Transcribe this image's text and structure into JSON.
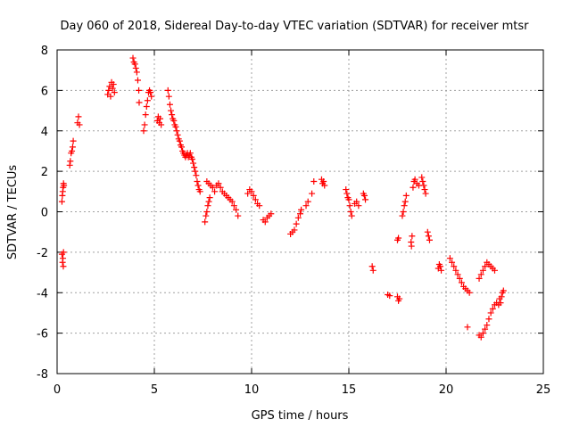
{
  "colors": {
    "marker": "#ff0000",
    "axis": "#000000",
    "grid": "#a0a0a0",
    "background": "#ffffff"
  },
  "chart_data": {
    "type": "scatter",
    "title": "Day 060 of 2018, Sidereal Day-to-day VTEC variation (SDTVAR) for receiver mtsr",
    "xlabel": "GPS time / hours",
    "ylabel": "SDTVAR / TECUs",
    "xlim": [
      0,
      25
    ],
    "ylim": [
      -8,
      8
    ],
    "xticks": [
      0,
      5,
      10,
      15,
      20,
      25
    ],
    "yticks": [
      -8,
      -6,
      -4,
      -2,
      0,
      2,
      4,
      6,
      8
    ],
    "grid": true,
    "marker": "+",
    "series": [
      {
        "name": "SDTVAR",
        "points": [
          [
            0.25,
            -2.1
          ],
          [
            0.28,
            -2.5
          ],
          [
            0.3,
            -2.3
          ],
          [
            0.32,
            -2.7
          ],
          [
            0.33,
            -2.0
          ],
          [
            0.25,
            0.5
          ],
          [
            0.27,
            0.8
          ],
          [
            0.29,
            1.0
          ],
          [
            0.31,
            1.2
          ],
          [
            0.33,
            1.4
          ],
          [
            0.35,
            1.3
          ],
          [
            0.65,
            2.3
          ],
          [
            0.68,
            2.5
          ],
          [
            0.72,
            2.9
          ],
          [
            0.76,
            3.0
          ],
          [
            0.8,
            3.2
          ],
          [
            0.83,
            3.5
          ],
          [
            1.05,
            4.4
          ],
          [
            1.1,
            4.7
          ],
          [
            1.15,
            4.3
          ],
          [
            2.6,
            5.8
          ],
          [
            2.65,
            6.0
          ],
          [
            2.7,
            6.2
          ],
          [
            2.75,
            5.7
          ],
          [
            2.8,
            6.4
          ],
          [
            2.85,
            6.1
          ],
          [
            2.9,
            6.3
          ],
          [
            2.95,
            5.9
          ],
          [
            3.9,
            7.6
          ],
          [
            3.95,
            7.4
          ],
          [
            4.0,
            7.3
          ],
          [
            4.05,
            7.1
          ],
          [
            4.1,
            6.9
          ],
          [
            4.15,
            6.5
          ],
          [
            4.2,
            6.0
          ],
          [
            4.22,
            5.4
          ],
          [
            4.45,
            4.0
          ],
          [
            4.5,
            4.3
          ],
          [
            4.55,
            4.8
          ],
          [
            4.6,
            5.2
          ],
          [
            4.65,
            5.5
          ],
          [
            4.7,
            5.9
          ],
          [
            4.75,
            6.0
          ],
          [
            4.8,
            5.9
          ],
          [
            4.85,
            5.7
          ],
          [
            5.15,
            4.5
          ],
          [
            5.2,
            4.7
          ],
          [
            5.25,
            4.4
          ],
          [
            5.3,
            4.6
          ],
          [
            5.35,
            4.3
          ],
          [
            5.7,
            6.0
          ],
          [
            5.75,
            5.7
          ],
          [
            5.8,
            5.3
          ],
          [
            5.85,
            5.0
          ],
          [
            5.9,
            4.8
          ],
          [
            5.95,
            4.6
          ],
          [
            6.0,
            4.5
          ],
          [
            6.05,
            4.3
          ],
          [
            6.1,
            4.2
          ],
          [
            6.15,
            4.0
          ],
          [
            6.2,
            3.8
          ],
          [
            6.25,
            3.6
          ],
          [
            6.3,
            3.5
          ],
          [
            6.35,
            3.3
          ],
          [
            6.4,
            3.2
          ],
          [
            6.45,
            3.0
          ],
          [
            6.5,
            2.9
          ],
          [
            6.55,
            2.8
          ],
          [
            6.6,
            2.7
          ],
          [
            6.65,
            2.8
          ],
          [
            6.7,
            2.9
          ],
          [
            6.75,
            2.7
          ],
          [
            6.8,
            2.8
          ],
          [
            6.85,
            2.9
          ],
          [
            6.9,
            2.7
          ],
          [
            6.95,
            2.6
          ],
          [
            7.0,
            2.4
          ],
          [
            7.05,
            2.2
          ],
          [
            7.1,
            2.0
          ],
          [
            7.15,
            1.8
          ],
          [
            7.2,
            1.5
          ],
          [
            7.25,
            1.3
          ],
          [
            7.3,
            1.1
          ],
          [
            7.35,
            1.0
          ],
          [
            7.6,
            -0.5
          ],
          [
            7.65,
            -0.2
          ],
          [
            7.7,
            0.0
          ],
          [
            7.75,
            0.3
          ],
          [
            7.8,
            0.5
          ],
          [
            7.85,
            0.7
          ],
          [
            7.7,
            1.5
          ],
          [
            7.8,
            1.4
          ],
          [
            7.9,
            1.3
          ],
          [
            8.0,
            1.2
          ],
          [
            8.1,
            1.0
          ],
          [
            8.2,
            1.3
          ],
          [
            8.3,
            1.4
          ],
          [
            8.4,
            1.2
          ],
          [
            8.5,
            1.0
          ],
          [
            8.6,
            0.9
          ],
          [
            8.7,
            0.8
          ],
          [
            8.8,
            0.7
          ],
          [
            8.9,
            0.6
          ],
          [
            9.0,
            0.5
          ],
          [
            9.1,
            0.3
          ],
          [
            9.2,
            0.1
          ],
          [
            9.3,
            -0.2
          ],
          [
            9.8,
            0.9
          ],
          [
            9.9,
            1.1
          ],
          [
            10.0,
            1.0
          ],
          [
            10.1,
            0.8
          ],
          [
            10.2,
            0.6
          ],
          [
            10.3,
            0.4
          ],
          [
            10.4,
            0.3
          ],
          [
            10.6,
            -0.4
          ],
          [
            10.7,
            -0.5
          ],
          [
            10.8,
            -0.3
          ],
          [
            10.9,
            -0.2
          ],
          [
            11.0,
            -0.1
          ],
          [
            12.0,
            -1.1
          ],
          [
            12.1,
            -1.0
          ],
          [
            12.2,
            -0.9
          ],
          [
            12.3,
            -0.6
          ],
          [
            12.4,
            -0.3
          ],
          [
            12.5,
            -0.1
          ],
          [
            12.55,
            0.1
          ],
          [
            12.8,
            0.3
          ],
          [
            12.9,
            0.5
          ],
          [
            13.1,
            0.9
          ],
          [
            13.2,
            1.5
          ],
          [
            13.6,
            1.6
          ],
          [
            13.65,
            1.4
          ],
          [
            13.7,
            1.5
          ],
          [
            13.75,
            1.3
          ],
          [
            14.85,
            1.1
          ],
          [
            14.9,
            0.9
          ],
          [
            14.95,
            0.7
          ],
          [
            15.0,
            0.6
          ],
          [
            15.05,
            0.3
          ],
          [
            15.1,
            0.0
          ],
          [
            15.15,
            -0.2
          ],
          [
            15.3,
            0.4
          ],
          [
            15.4,
            0.5
          ],
          [
            15.5,
            0.3
          ],
          [
            15.75,
            0.9
          ],
          [
            15.8,
            0.8
          ],
          [
            15.85,
            0.6
          ],
          [
            16.2,
            -2.7
          ],
          [
            16.25,
            -2.9
          ],
          [
            17.0,
            -4.1
          ],
          [
            17.1,
            -4.15
          ],
          [
            17.5,
            -1.4
          ],
          [
            17.55,
            -1.3
          ],
          [
            17.5,
            -4.2
          ],
          [
            17.55,
            -4.4
          ],
          [
            17.6,
            -4.3
          ],
          [
            17.75,
            -0.2
          ],
          [
            17.8,
            0.0
          ],
          [
            17.85,
            0.3
          ],
          [
            17.9,
            0.5
          ],
          [
            17.95,
            0.8
          ],
          [
            18.2,
            -1.5
          ],
          [
            18.22,
            -1.7
          ],
          [
            18.25,
            -1.2
          ],
          [
            18.3,
            1.2
          ],
          [
            18.35,
            1.5
          ],
          [
            18.4,
            1.6
          ],
          [
            18.5,
            1.4
          ],
          [
            18.6,
            1.3
          ],
          [
            18.75,
            1.7
          ],
          [
            18.8,
            1.5
          ],
          [
            18.85,
            1.3
          ],
          [
            18.9,
            1.1
          ],
          [
            18.95,
            0.9
          ],
          [
            19.05,
            -1.0
          ],
          [
            19.1,
            -1.2
          ],
          [
            19.15,
            -1.4
          ],
          [
            19.6,
            -2.8
          ],
          [
            19.65,
            -2.6
          ],
          [
            19.7,
            -2.7
          ],
          [
            19.75,
            -2.9
          ],
          [
            20.2,
            -2.3
          ],
          [
            20.3,
            -2.5
          ],
          [
            20.4,
            -2.7
          ],
          [
            20.5,
            -2.9
          ],
          [
            20.6,
            -3.1
          ],
          [
            20.7,
            -3.3
          ],
          [
            20.8,
            -3.5
          ],
          [
            20.9,
            -3.7
          ],
          [
            21.0,
            -3.8
          ],
          [
            21.1,
            -3.9
          ],
          [
            21.2,
            -4.0
          ],
          [
            21.1,
            -5.7
          ],
          [
            21.7,
            -3.3
          ],
          [
            21.8,
            -3.1
          ],
          [
            21.9,
            -2.9
          ],
          [
            22.0,
            -2.7
          ],
          [
            22.1,
            -2.5
          ],
          [
            22.2,
            -2.6
          ],
          [
            22.3,
            -2.7
          ],
          [
            22.4,
            -2.8
          ],
          [
            22.5,
            -2.9
          ],
          [
            21.7,
            -6.1
          ],
          [
            21.8,
            -6.2
          ],
          [
            21.9,
            -6.0
          ],
          [
            22.0,
            -5.8
          ],
          [
            22.1,
            -5.6
          ],
          [
            22.2,
            -5.3
          ],
          [
            22.3,
            -5.0
          ],
          [
            22.4,
            -4.8
          ],
          [
            22.5,
            -4.6
          ],
          [
            22.6,
            -4.5
          ],
          [
            22.7,
            -4.6
          ],
          [
            22.75,
            -4.3
          ],
          [
            22.8,
            -4.5
          ],
          [
            22.85,
            -4.2
          ],
          [
            22.9,
            -4.0
          ],
          [
            22.95,
            -3.9
          ]
        ]
      }
    ]
  }
}
